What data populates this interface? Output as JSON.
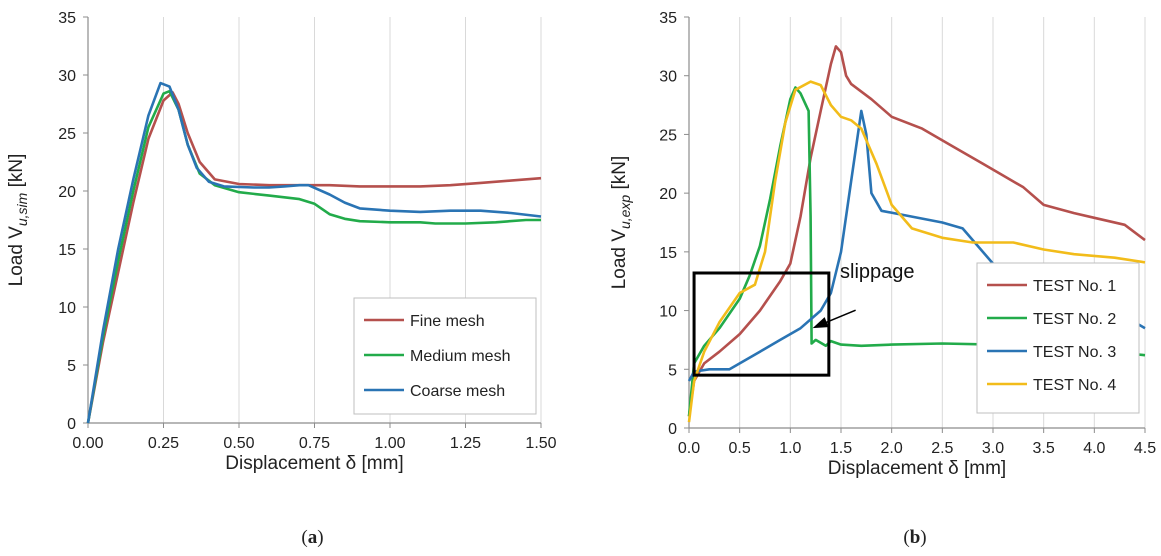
{
  "chart_data": [
    {
      "type": "line",
      "panel_label_prefix": "(",
      "panel_label": "a",
      "panel_label_suffix": ")",
      "xlabel": "Displacement δ [mm]",
      "ylabel": "Load V",
      "ylabel_sub": "u,sim",
      "ylabel_unit": " [kN]",
      "xlim": [
        0,
        1.5
      ],
      "ylim": [
        0,
        35
      ],
      "xticks": [
        "0.00",
        "0.25",
        "0.50",
        "0.75",
        "1.00",
        "1.25",
        "1.50"
      ],
      "xtick_values": [
        0,
        0.25,
        0.5,
        0.75,
        1.0,
        1.25,
        1.5
      ],
      "yticks": [
        "0",
        "5",
        "10",
        "15",
        "20",
        "25",
        "30",
        "35"
      ],
      "ytick_values": [
        0,
        5,
        10,
        15,
        20,
        25,
        30,
        35
      ],
      "grid": "vertical",
      "legend_position": "bottom-right",
      "series": [
        {
          "name": "Fine mesh",
          "color": "#b5504d",
          "points": [
            [
              0,
              0
            ],
            [
              0.05,
              7
            ],
            [
              0.1,
              13
            ],
            [
              0.15,
              19
            ],
            [
              0.2,
              24.5
            ],
            [
              0.25,
              27.8
            ],
            [
              0.28,
              28.5
            ],
            [
              0.3,
              27.5
            ],
            [
              0.33,
              25
            ],
            [
              0.37,
              22.5
            ],
            [
              0.42,
              21
            ],
            [
              0.5,
              20.6
            ],
            [
              0.6,
              20.5
            ],
            [
              0.7,
              20.5
            ],
            [
              0.8,
              20.5
            ],
            [
              0.9,
              20.4
            ],
            [
              1.0,
              20.4
            ],
            [
              1.1,
              20.4
            ],
            [
              1.2,
              20.5
            ],
            [
              1.3,
              20.7
            ],
            [
              1.4,
              20.9
            ],
            [
              1.5,
              21.1
            ]
          ]
        },
        {
          "name": "Medium mesh",
          "color": "#22ab4a",
          "points": [
            [
              0,
              0
            ],
            [
              0.05,
              7.5
            ],
            [
              0.1,
              14
            ],
            [
              0.15,
              20
            ],
            [
              0.2,
              25.5
            ],
            [
              0.25,
              28.4
            ],
            [
              0.27,
              28.6
            ],
            [
              0.3,
              27
            ],
            [
              0.33,
              24
            ],
            [
              0.37,
              21.5
            ],
            [
              0.42,
              20.5
            ],
            [
              0.5,
              19.9
            ],
            [
              0.6,
              19.6
            ],
            [
              0.7,
              19.3
            ],
            [
              0.75,
              18.9
            ],
            [
              0.8,
              18
            ],
            [
              0.85,
              17.6
            ],
            [
              0.9,
              17.4
            ],
            [
              1.0,
              17.3
            ],
            [
              1.1,
              17.3
            ],
            [
              1.15,
              17.2
            ],
            [
              1.25,
              17.2
            ],
            [
              1.35,
              17.3
            ],
            [
              1.45,
              17.5
            ],
            [
              1.5,
              17.5
            ]
          ]
        },
        {
          "name": "Coarse mesh",
          "color": "#2a74b4",
          "points": [
            [
              0,
              0
            ],
            [
              0.05,
              8
            ],
            [
              0.1,
              15
            ],
            [
              0.15,
              21
            ],
            [
              0.2,
              26.5
            ],
            [
              0.24,
              29.3
            ],
            [
              0.27,
              29
            ],
            [
              0.3,
              27
            ],
            [
              0.33,
              24
            ],
            [
              0.36,
              22
            ],
            [
              0.4,
              20.8
            ],
            [
              0.45,
              20.4
            ],
            [
              0.55,
              20.3
            ],
            [
              0.6,
              20.3
            ],
            [
              0.65,
              20.4
            ],
            [
              0.7,
              20.5
            ],
            [
              0.73,
              20.5
            ],
            [
              0.8,
              19.7
            ],
            [
              0.85,
              19
            ],
            [
              0.9,
              18.5
            ],
            [
              1.0,
              18.3
            ],
            [
              1.1,
              18.2
            ],
            [
              1.2,
              18.3
            ],
            [
              1.3,
              18.3
            ],
            [
              1.4,
              18.1
            ],
            [
              1.5,
              17.8
            ]
          ]
        }
      ]
    },
    {
      "type": "line",
      "panel_label_prefix": "(",
      "panel_label": "b",
      "panel_label_suffix": ")",
      "xlabel": "Displacement δ [mm]",
      "ylabel": "Load V",
      "ylabel_sub": "u,exp",
      "ylabel_unit": " [kN]",
      "xlim": [
        0,
        4.5
      ],
      "ylim": [
        0,
        35
      ],
      "xticks": [
        "0.0",
        "0.5",
        "1.0",
        "1.5",
        "2.0",
        "2.5",
        "3.0",
        "3.5",
        "4.0",
        "4.5"
      ],
      "xtick_values": [
        0,
        0.5,
        1.0,
        1.5,
        2.0,
        2.5,
        3.0,
        3.5,
        4.0,
        4.5
      ],
      "yticks": [
        "0",
        "5",
        "10",
        "15",
        "20",
        "25",
        "30",
        "35"
      ],
      "ytick_values": [
        0,
        5,
        10,
        15,
        20,
        25,
        30,
        35
      ],
      "grid": "vertical",
      "legend_position": "bottom-right",
      "annotation": {
        "text": "slippage",
        "box_x": [
          0.05,
          1.38
        ],
        "box_y": [
          4.5,
          13.2
        ],
        "arrow_to": [
          1.22,
          8.5
        ]
      },
      "series": [
        {
          "name": "TEST No. 1",
          "color": "#b5504d",
          "points": [
            [
              0,
              1
            ],
            [
              0.05,
              4
            ],
            [
              0.15,
              5.5
            ],
            [
              0.3,
              6.5
            ],
            [
              0.5,
              8
            ],
            [
              0.7,
              10
            ],
            [
              0.9,
              12.5
            ],
            [
              1.0,
              14
            ],
            [
              1.1,
              18
            ],
            [
              1.2,
              23
            ],
            [
              1.3,
              27
            ],
            [
              1.4,
              31
            ],
            [
              1.45,
              32.5
            ],
            [
              1.5,
              32
            ],
            [
              1.55,
              30
            ],
            [
              1.6,
              29.3
            ],
            [
              1.8,
              28
            ],
            [
              2.0,
              26.5
            ],
            [
              2.3,
              25.5
            ],
            [
              2.6,
              24
            ],
            [
              2.9,
              22.5
            ],
            [
              3.1,
              21.5
            ],
            [
              3.3,
              20.5
            ],
            [
              3.5,
              19
            ],
            [
              3.8,
              18.3
            ],
            [
              4.0,
              17.9
            ],
            [
              4.3,
              17.3
            ],
            [
              4.5,
              16
            ]
          ]
        },
        {
          "name": "TEST No. 2",
          "color": "#22ab4a",
          "points": [
            [
              0,
              1
            ],
            [
              0.05,
              5.5
            ],
            [
              0.15,
              7
            ],
            [
              0.3,
              8.5
            ],
            [
              0.5,
              11
            ],
            [
              0.6,
              13
            ],
            [
              0.7,
              15.5
            ],
            [
              0.8,
              19.5
            ],
            [
              0.9,
              24
            ],
            [
              1.0,
              28
            ],
            [
              1.05,
              29
            ],
            [
              1.1,
              28.5
            ],
            [
              1.18,
              27
            ],
            [
              1.2,
              18
            ],
            [
              1.21,
              7.2
            ],
            [
              1.25,
              7.5
            ],
            [
              1.35,
              7
            ],
            [
              1.4,
              7.4
            ],
            [
              1.5,
              7.1
            ],
            [
              1.7,
              7
            ],
            [
              2.0,
              7.1
            ],
            [
              2.5,
              7.2
            ],
            [
              3.0,
              7.1
            ],
            [
              3.5,
              6.9
            ],
            [
              4.0,
              6.6
            ],
            [
              4.5,
              6.2
            ]
          ]
        },
        {
          "name": "TEST No. 3",
          "color": "#2a74b4",
          "points": [
            [
              0,
              4
            ],
            [
              0.05,
              4.8
            ],
            [
              0.2,
              5
            ],
            [
              0.4,
              5
            ],
            [
              0.5,
              5.5
            ],
            [
              0.7,
              6.5
            ],
            [
              0.9,
              7.5
            ],
            [
              1.1,
              8.5
            ],
            [
              1.3,
              10
            ],
            [
              1.4,
              11.5
            ],
            [
              1.5,
              15
            ],
            [
              1.6,
              21
            ],
            [
              1.7,
              27
            ],
            [
              1.75,
              25
            ],
            [
              1.8,
              20
            ],
            [
              1.9,
              18.5
            ],
            [
              2.2,
              18
            ],
            [
              2.5,
              17.5
            ],
            [
              2.7,
              17
            ],
            [
              3.0,
              14
            ],
            [
              3.5,
              12.5
            ],
            [
              4.0,
              10.5
            ],
            [
              4.3,
              9.5
            ],
            [
              4.5,
              8.5
            ]
          ]
        },
        {
          "name": "TEST No. 4",
          "color": "#f2bc1a",
          "points": [
            [
              0,
              0.5
            ],
            [
              0.05,
              4
            ],
            [
              0.15,
              6.5
            ],
            [
              0.3,
              9
            ],
            [
              0.5,
              11.5
            ],
            [
              0.65,
              12.2
            ],
            [
              0.75,
              15
            ],
            [
              0.85,
              21
            ],
            [
              0.95,
              26
            ],
            [
              1.05,
              28.8
            ],
            [
              1.2,
              29.5
            ],
            [
              1.3,
              29.2
            ],
            [
              1.4,
              27.5
            ],
            [
              1.5,
              26.5
            ],
            [
              1.6,
              26.2
            ],
            [
              1.7,
              25.5
            ],
            [
              1.85,
              22.5
            ],
            [
              2.0,
              19
            ],
            [
              2.2,
              17
            ],
            [
              2.5,
              16.2
            ],
            [
              2.8,
              15.8
            ],
            [
              3.2,
              15.8
            ],
            [
              3.5,
              15.2
            ],
            [
              3.8,
              14.8
            ],
            [
              4.2,
              14.5
            ],
            [
              4.5,
              14.1
            ]
          ]
        }
      ]
    }
  ]
}
